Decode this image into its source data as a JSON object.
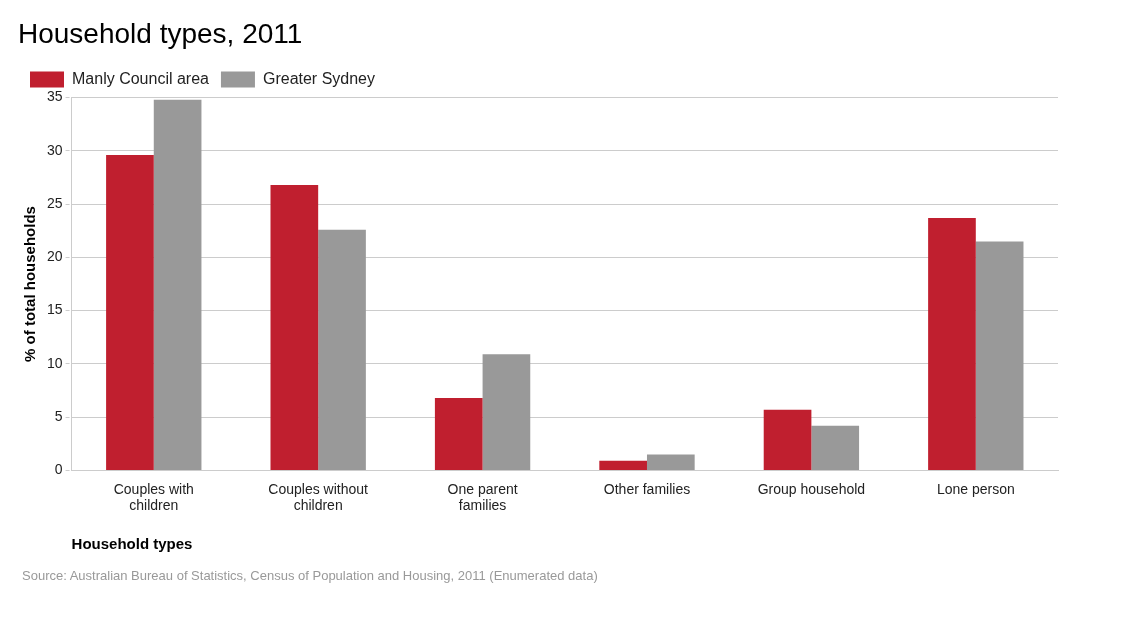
{
  "chart_data": {
    "type": "bar",
    "title": "Household types, 2011",
    "xlabel": "Household types",
    "ylabel": "% of total households",
    "categories": [
      "Couples with children",
      "Couples without children",
      "One parent families",
      "Other families",
      "Group household",
      "Lone person"
    ],
    "series": [
      {
        "name": "Manly Council area",
        "color": "#c01f2f",
        "values": [
          29.6,
          26.8,
          6.8,
          0.9,
          5.7,
          23.7
        ]
      },
      {
        "name": "Greater Sydney",
        "color": "#999999",
        "values": [
          34.8,
          22.6,
          10.9,
          1.5,
          4.2,
          21.5
        ]
      }
    ],
    "ylim": [
      0,
      35
    ],
    "yticks": [
      0,
      5,
      10,
      15,
      20,
      25,
      30,
      35
    ],
    "grid": "y",
    "legend": "top left",
    "annotations": [
      "Source: Australian Bureau of Statistics, Census of Population and Housing, 2011 (Enumerated data)"
    ]
  }
}
